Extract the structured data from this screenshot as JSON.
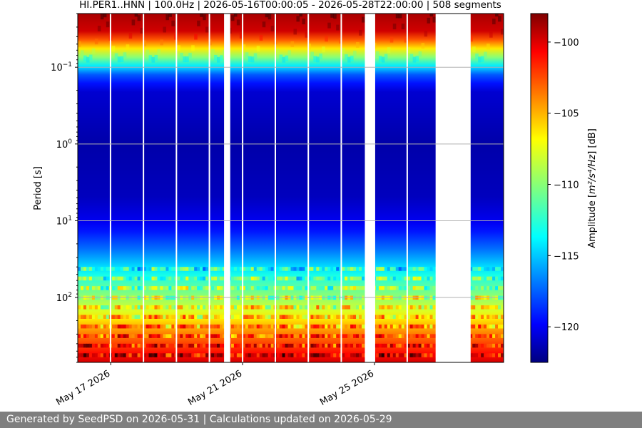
{
  "chart_data": {
    "type": "heatmap",
    "title": "HI.PER1..HNN | 100.0Hz | 2026-05-16T00:00:05 - 2026-05-28T22:00:00 | 508 segments",
    "ylabel": "Period [s]",
    "colorbar_label_prefix": "Amplitude [",
    "colorbar_label_units": "m²/s⁴/Hz",
    "colorbar_label_suffix": "] [dB]",
    "x_range": [
      "2026-05-16T00:00:05",
      "2026-05-28T22:00:00"
    ],
    "x_ticks": [
      {
        "date": "2026-05-17",
        "label": "May 17 2026"
      },
      {
        "date": "2026-05-21",
        "label": "May 21 2026"
      },
      {
        "date": "2026-05-25",
        "label": "May 25 2026"
      }
    ],
    "y_scale": "log",
    "y_range": [
      0.02,
      700
    ],
    "y_inverted": true,
    "y_ticks": [
      {
        "value": 0.1,
        "base": "10",
        "exp": "−1"
      },
      {
        "value": 1,
        "base": "10",
        "exp": "0"
      },
      {
        "value": 10,
        "base": "10",
        "exp": "1"
      },
      {
        "value": 100,
        "base": "10",
        "exp": "2"
      }
    ],
    "grid": true,
    "colorbar": {
      "range": [
        -122.5,
        -98
      ],
      "ticks": [
        -100,
        -105,
        -110,
        -115,
        -120
      ],
      "colormap": "jet"
    },
    "data_gaps": [
      [
        "2026-05-20T10:30",
        "2026-05-20T15:00"
      ],
      [
        "2026-05-24T17:00",
        "2026-05-25T00:30"
      ],
      [
        "2026-05-26T20:30",
        "2026-05-27T22:00"
      ]
    ],
    "segment_breaks": [
      "2026-05-16T23:50",
      "2026-05-17T23:50",
      "2026-05-18T23:50",
      "2026-05-19T23:50",
      "2026-05-21T00:00",
      "2026-05-21T23:50",
      "2026-05-22T23:50",
      "2026-05-23T23:50",
      "2026-05-25T23:50"
    ],
    "amplitude_profile": [
      {
        "period": 0.02,
        "db": -99
      },
      {
        "period": 0.035,
        "db": -100
      },
      {
        "period": 0.05,
        "db": -105
      },
      {
        "period": 0.08,
        "db": -111
      },
      {
        "period": 0.12,
        "db": -117
      },
      {
        "period": 0.2,
        "db": -120.5
      },
      {
        "period": 1,
        "db": -121.5
      },
      {
        "period": 5,
        "db": -121
      },
      {
        "period": 12,
        "db": -119.5
      },
      {
        "period": 25,
        "db": -116.5
      },
      {
        "period": 60,
        "db": -112
      },
      {
        "period": 150,
        "db": -108
      },
      {
        "period": 300,
        "db": -104
      },
      {
        "period": 700,
        "db": -100
      }
    ]
  },
  "footer": {
    "text": "Generated by SeedPSD on 2026-05-31 | Calculations updated on 2026-05-29"
  }
}
